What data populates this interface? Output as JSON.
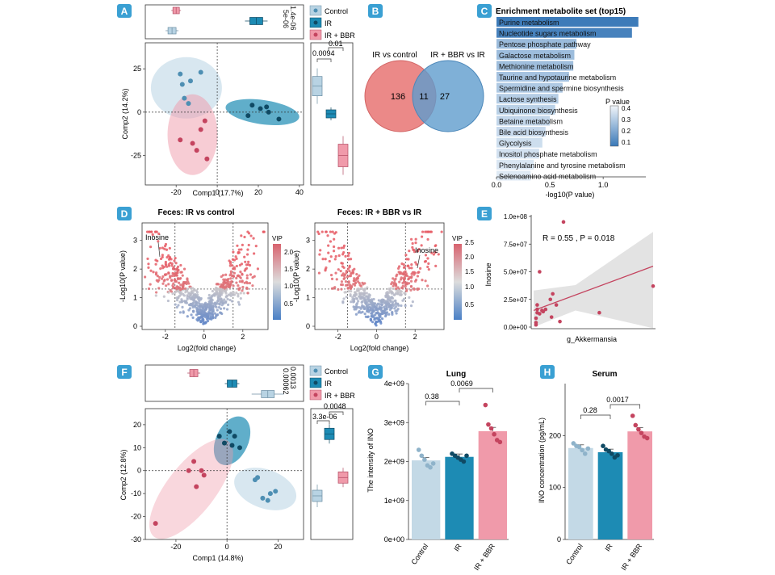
{
  "colors": {
    "control": "#b8d3e3",
    "ir": "#1d8bb4",
    "irbbr": "#f09aaa",
    "irbbr_dark": "#d35a72",
    "ir_dark": "#0f4a64",
    "tag": "#3aa0d3"
  },
  "panels": {
    "A": {
      "label": "A",
      "xlabel": "Comp1 (17.7%)",
      "ylabel": "Comp2 (14.2%)",
      "xticks": [
        "-20",
        "0",
        "20",
        "40"
      ],
      "yticks": [
        "25",
        "0",
        "-25"
      ],
      "legend": [
        "Control",
        "IR",
        "IR + BBR"
      ],
      "top_pvals": [
        "1.4e-06",
        "5e-06"
      ],
      "right_pvals": [
        "0.0094",
        "0.01"
      ]
    },
    "B": {
      "label": "B",
      "left_title": "IR vs control",
      "right_title": "IR + BBR vs IR",
      "left_only": "136",
      "overlap": "11",
      "right_only": "27"
    },
    "C": {
      "label": "C",
      "title": "Enrichment metabolite set (top15)",
      "xlabel": "-log10(P value)",
      "xticks": [
        "0.0",
        "0.5",
        "1.0"
      ],
      "legend_title": "P value",
      "legend_ticks": [
        "0.4",
        "0.3",
        "0.2",
        "0.1"
      ]
    },
    "D": {
      "label": "D",
      "left_title": "Feces: IR vs control",
      "right_title": "Feces: IR + BBR vs IR",
      "xlabel": "Log2(fold change)",
      "ylabel": "-Log10(P value)",
      "left_xticks": [
        "-2",
        "0",
        "2"
      ],
      "right_xticks": [
        "-2",
        "0",
        "2"
      ],
      "yticks": [
        "0",
        "1",
        "2",
        "3"
      ],
      "left_vip_title": "VIP",
      "left_vip_ticks": [
        "2.0",
        "1.5",
        "1.0",
        "0.5"
      ],
      "right_vip_title": "VIP",
      "right_vip_ticks": [
        "2.5",
        "2.0",
        "1.5",
        "1.0",
        "0.5"
      ],
      "left_callout": "Inosine",
      "right_callout": "Inosine"
    },
    "E": {
      "label": "E",
      "annotation": "R = 0.55 , P = 0.018",
      "xlabel": "g_Akkermansia",
      "ylabel": "Inosine",
      "yticks": [
        "0.0e+00",
        "2.5e+07",
        "5.0e+07",
        "7.5e+07",
        "1.0e+08"
      ]
    },
    "F": {
      "label": "F",
      "xlabel": "Comp1 (14.8%)",
      "ylabel": "Comp2 (12.8%)",
      "xticks": [
        "-20",
        "0",
        "20"
      ],
      "yticks": [
        "20",
        "10",
        "0",
        "-10",
        "-20",
        "-30"
      ],
      "legend": [
        "Control",
        "IR",
        "IR + BBR"
      ],
      "top_pvals": [
        "0.0013",
        "0.00062"
      ],
      "right_pvals": [
        "0.0048",
        "3.3e-06"
      ]
    },
    "G": {
      "label": "G",
      "title": "Lung",
      "ylabel": "The intensity of INO",
      "yticks": [
        "0e+00",
        "1e+09",
        "2e+09",
        "3e+09",
        "4e+09"
      ],
      "groups": [
        "Control",
        "IR",
        "IR + BBR"
      ],
      "pvals": [
        "0.38",
        "0.0069"
      ]
    },
    "H": {
      "label": "H",
      "title": "Serum",
      "ylabel": "INO concentration (pg/mL)",
      "yticks": [
        "0",
        "100",
        "200"
      ],
      "groups": [
        "Control",
        "IR",
        "IR + BBR"
      ],
      "pvals": [
        "0.28",
        "0.0017"
      ]
    }
  },
  "chart_data": [
    {
      "panel": "C",
      "type": "bar",
      "title": "Enrichment metabolite set (top15)",
      "xlabel": "-log10(P value)",
      "xlim": [
        0,
        1.4
      ],
      "categories": [
        "Purine metabolism",
        "Nucleotide sugars metabolism",
        "Pentose phosphate pathway",
        "Galactose metabolism",
        "Methionine metabolism",
        "Taurine and hypotaurine metabolism",
        "Spermidine and spermine biosynthesis",
        "Lactose synthesis",
        "Ubiquinone biosynthesis",
        "Betaine metabolism",
        "Bile acid biosynthesis",
        "Glycolysis",
        "Inositol phosphate metabolism",
        "Phenylalanine and tyrosine metabolism",
        "Selenoamino acid metabolism"
      ],
      "values": [
        1.33,
        1.27,
        0.75,
        0.73,
        0.72,
        0.68,
        0.62,
        0.58,
        0.55,
        0.5,
        0.46,
        0.43,
        0.4,
        0.35,
        0.32
      ]
    },
    {
      "panel": "E",
      "type": "scatter",
      "xlabel": "g_Akkermansia",
      "ylabel": "Inosine",
      "ylim": [
        0,
        100000000
      ],
      "x": [
        0.02,
        0.02,
        0.02,
        0.03,
        0.03,
        0.03,
        0.05,
        0.05,
        0.07,
        0.08,
        0.1,
        0.14,
        0.15,
        0.16,
        0.19,
        0.22,
        0.25,
        0.55,
        1.0
      ],
      "y": [
        2000000,
        4000000,
        8000000,
        13000000,
        16000000,
        20000000,
        50000000,
        12000000,
        15000000,
        14000000,
        16000000,
        25000000,
        9000000,
        30000000,
        20000000,
        5000000,
        95000000,
        13000000,
        37000000
      ]
    },
    {
      "panel": "G",
      "type": "bar",
      "title": "Lung",
      "ylabel": "The intensity of INO",
      "ylim": [
        0,
        4000000000
      ],
      "categories": [
        "Control",
        "IR",
        "IR + BBR"
      ],
      "values": [
        2030000000,
        2120000000,
        2780000000
      ],
      "points": [
        [
          2300000000,
          2150000000,
          2050000000,
          1900000000,
          1850000000,
          1950000000
        ],
        [
          2200000000,
          2150000000,
          2100000000,
          2050000000,
          2000000000,
          2150000000
        ],
        [
          3450000000,
          2950000000,
          2850000000,
          2700000000,
          2550000000,
          2500000000
        ]
      ]
    },
    {
      "panel": "H",
      "type": "bar",
      "title": "Serum",
      "ylabel": "INO concentration (pg/mL)",
      "ylim": [
        0,
        250
      ],
      "categories": [
        "Control",
        "IR",
        "IR + BBR"
      ],
      "values": [
        176,
        168,
        208
      ],
      "points": [
        [
          185,
          180,
          178,
          172,
          165,
          175
        ],
        [
          180,
          173,
          170,
          165,
          158,
          162
        ],
        [
          238,
          220,
          212,
          205,
          198,
          195
        ]
      ]
    },
    {
      "panel": "A",
      "type": "scatter",
      "xlabel": "Comp1 (17.7%)",
      "ylabel": "Comp2 (14.2%)",
      "xlim": [
        -35,
        42
      ],
      "ylim": [
        -42,
        40
      ],
      "series": [
        {
          "name": "Control",
          "x": [
            -17,
            -13,
            -18,
            -8,
            -14,
            -16
          ],
          "y": [
            16,
            18,
            22,
            23,
            5,
            8
          ]
        },
        {
          "name": "IR",
          "x": [
            17,
            21,
            24,
            25,
            30,
            15
          ],
          "y": [
            4,
            2,
            3,
            0,
            -4,
            -2
          ]
        },
        {
          "name": "IR + BBR",
          "x": [
            -8,
            -12,
            -10,
            -5,
            -18,
            -6
          ],
          "y": [
            -10,
            -18,
            -22,
            -27,
            -16,
            -5
          ]
        }
      ]
    },
    {
      "panel": "F",
      "type": "scatter",
      "xlabel": "Comp1 (14.8%)",
      "ylabel": "Comp2 (12.8%)",
      "xlim": [
        -32,
        30
      ],
      "ylim": [
        -30,
        27
      ],
      "series": [
        {
          "name": "Control",
          "x": [
            11,
            14,
            17,
            19,
            16,
            12
          ],
          "y": [
            -4,
            -12,
            -10,
            -9,
            -13,
            -3
          ]
        },
        {
          "name": "IR",
          "x": [
            1,
            3,
            -3,
            2,
            -1,
            5
          ],
          "y": [
            17,
            15,
            15,
            11,
            12,
            10
          ]
        },
        {
          "name": "IR + BBR",
          "x": [
            -13,
            -10,
            -15,
            -12,
            -9,
            -28
          ],
          "y": [
            4,
            0,
            0,
            -7,
            -2,
            -23
          ]
        }
      ]
    }
  ],
  "enrichment_labels": [
    "Purine metabolism",
    "Nucleotide sugars metabolism",
    "Pentose phosphate pathway",
    "Galactose metabolism",
    "Methionine metabolism",
    "Taurine and hypotaurine metabolism",
    "Spermidine and spermine biosynthesis",
    "Lactose synthesis",
    "Ubiquinone biosynthesis",
    "Betaine metabolism",
    "Bile acid biosynthesis",
    "Glycolysis",
    "Inositol phosphate metabolism",
    "Phenylalanine and tyrosine metabolism",
    "Selenoamino acid metabolism"
  ]
}
